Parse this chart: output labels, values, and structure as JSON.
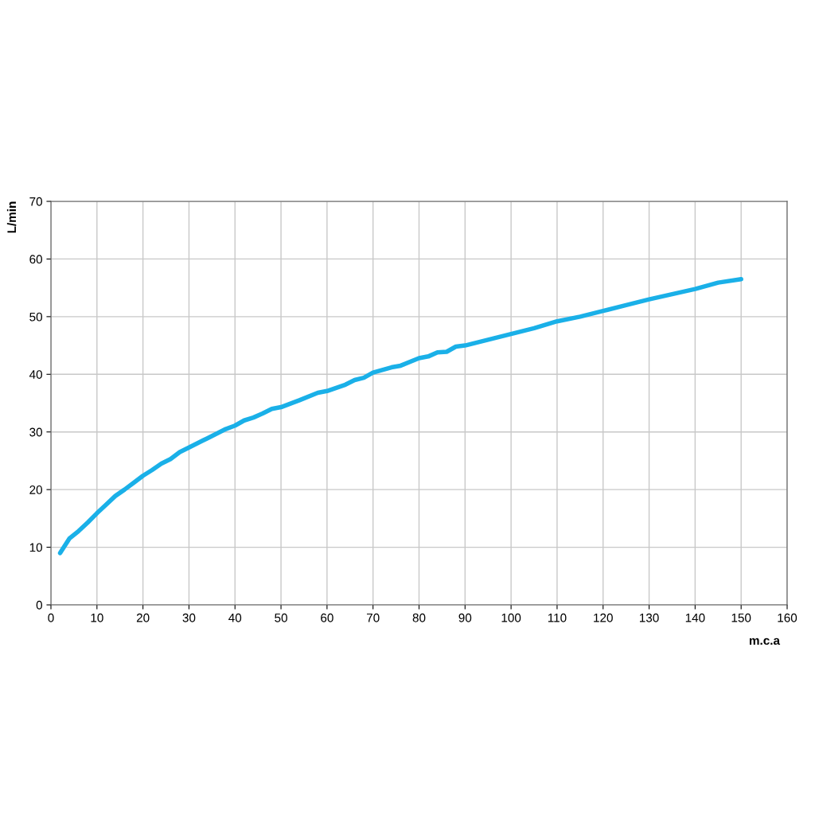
{
  "chart_data": {
    "type": "line",
    "xlabel": "m.c.a",
    "ylabel": "L/min",
    "x": [
      2,
      4,
      6,
      8,
      10,
      12,
      14,
      16,
      18,
      20,
      22,
      24,
      26,
      28,
      30,
      34,
      38,
      40,
      42,
      44,
      46,
      48,
      50,
      54,
      58,
      60,
      64,
      66,
      68,
      70,
      74,
      76,
      80,
      82,
      84,
      86,
      88,
      90,
      95,
      100,
      105,
      110,
      115,
      120,
      125,
      130,
      135,
      140,
      145,
      150
    ],
    "series": [
      {
        "color": "#1ab0e8",
        "values": [
          9.0,
          11.5,
          12.8,
          14.3,
          15.9,
          17.4,
          18.9,
          20.0,
          21.2,
          22.4,
          23.4,
          24.5,
          25.3,
          26.5,
          27.3,
          28.9,
          30.5,
          31.1,
          32.0,
          32.5,
          33.2,
          34.0,
          34.3,
          35.5,
          36.8,
          37.1,
          38.2,
          39.0,
          39.4,
          40.3,
          41.2,
          41.5,
          42.8,
          43.1,
          43.8,
          43.9,
          44.8,
          45.0,
          46.0,
          47.0,
          48.0,
          49.2,
          50.0,
          51.0,
          52.0,
          53.0,
          53.9,
          54.8,
          55.9,
          56.5
        ]
      }
    ],
    "xlim": [
      0,
      160
    ],
    "xticks": [
      0,
      10,
      20,
      30,
      40,
      50,
      60,
      70,
      80,
      90,
      100,
      110,
      120,
      130,
      140,
      150,
      160
    ],
    "ylim": [
      0,
      70
    ],
    "yticks": [
      0,
      10,
      20,
      30,
      40,
      50,
      60,
      70
    ],
    "grid": true,
    "marker": "none",
    "line_style": "solid"
  }
}
